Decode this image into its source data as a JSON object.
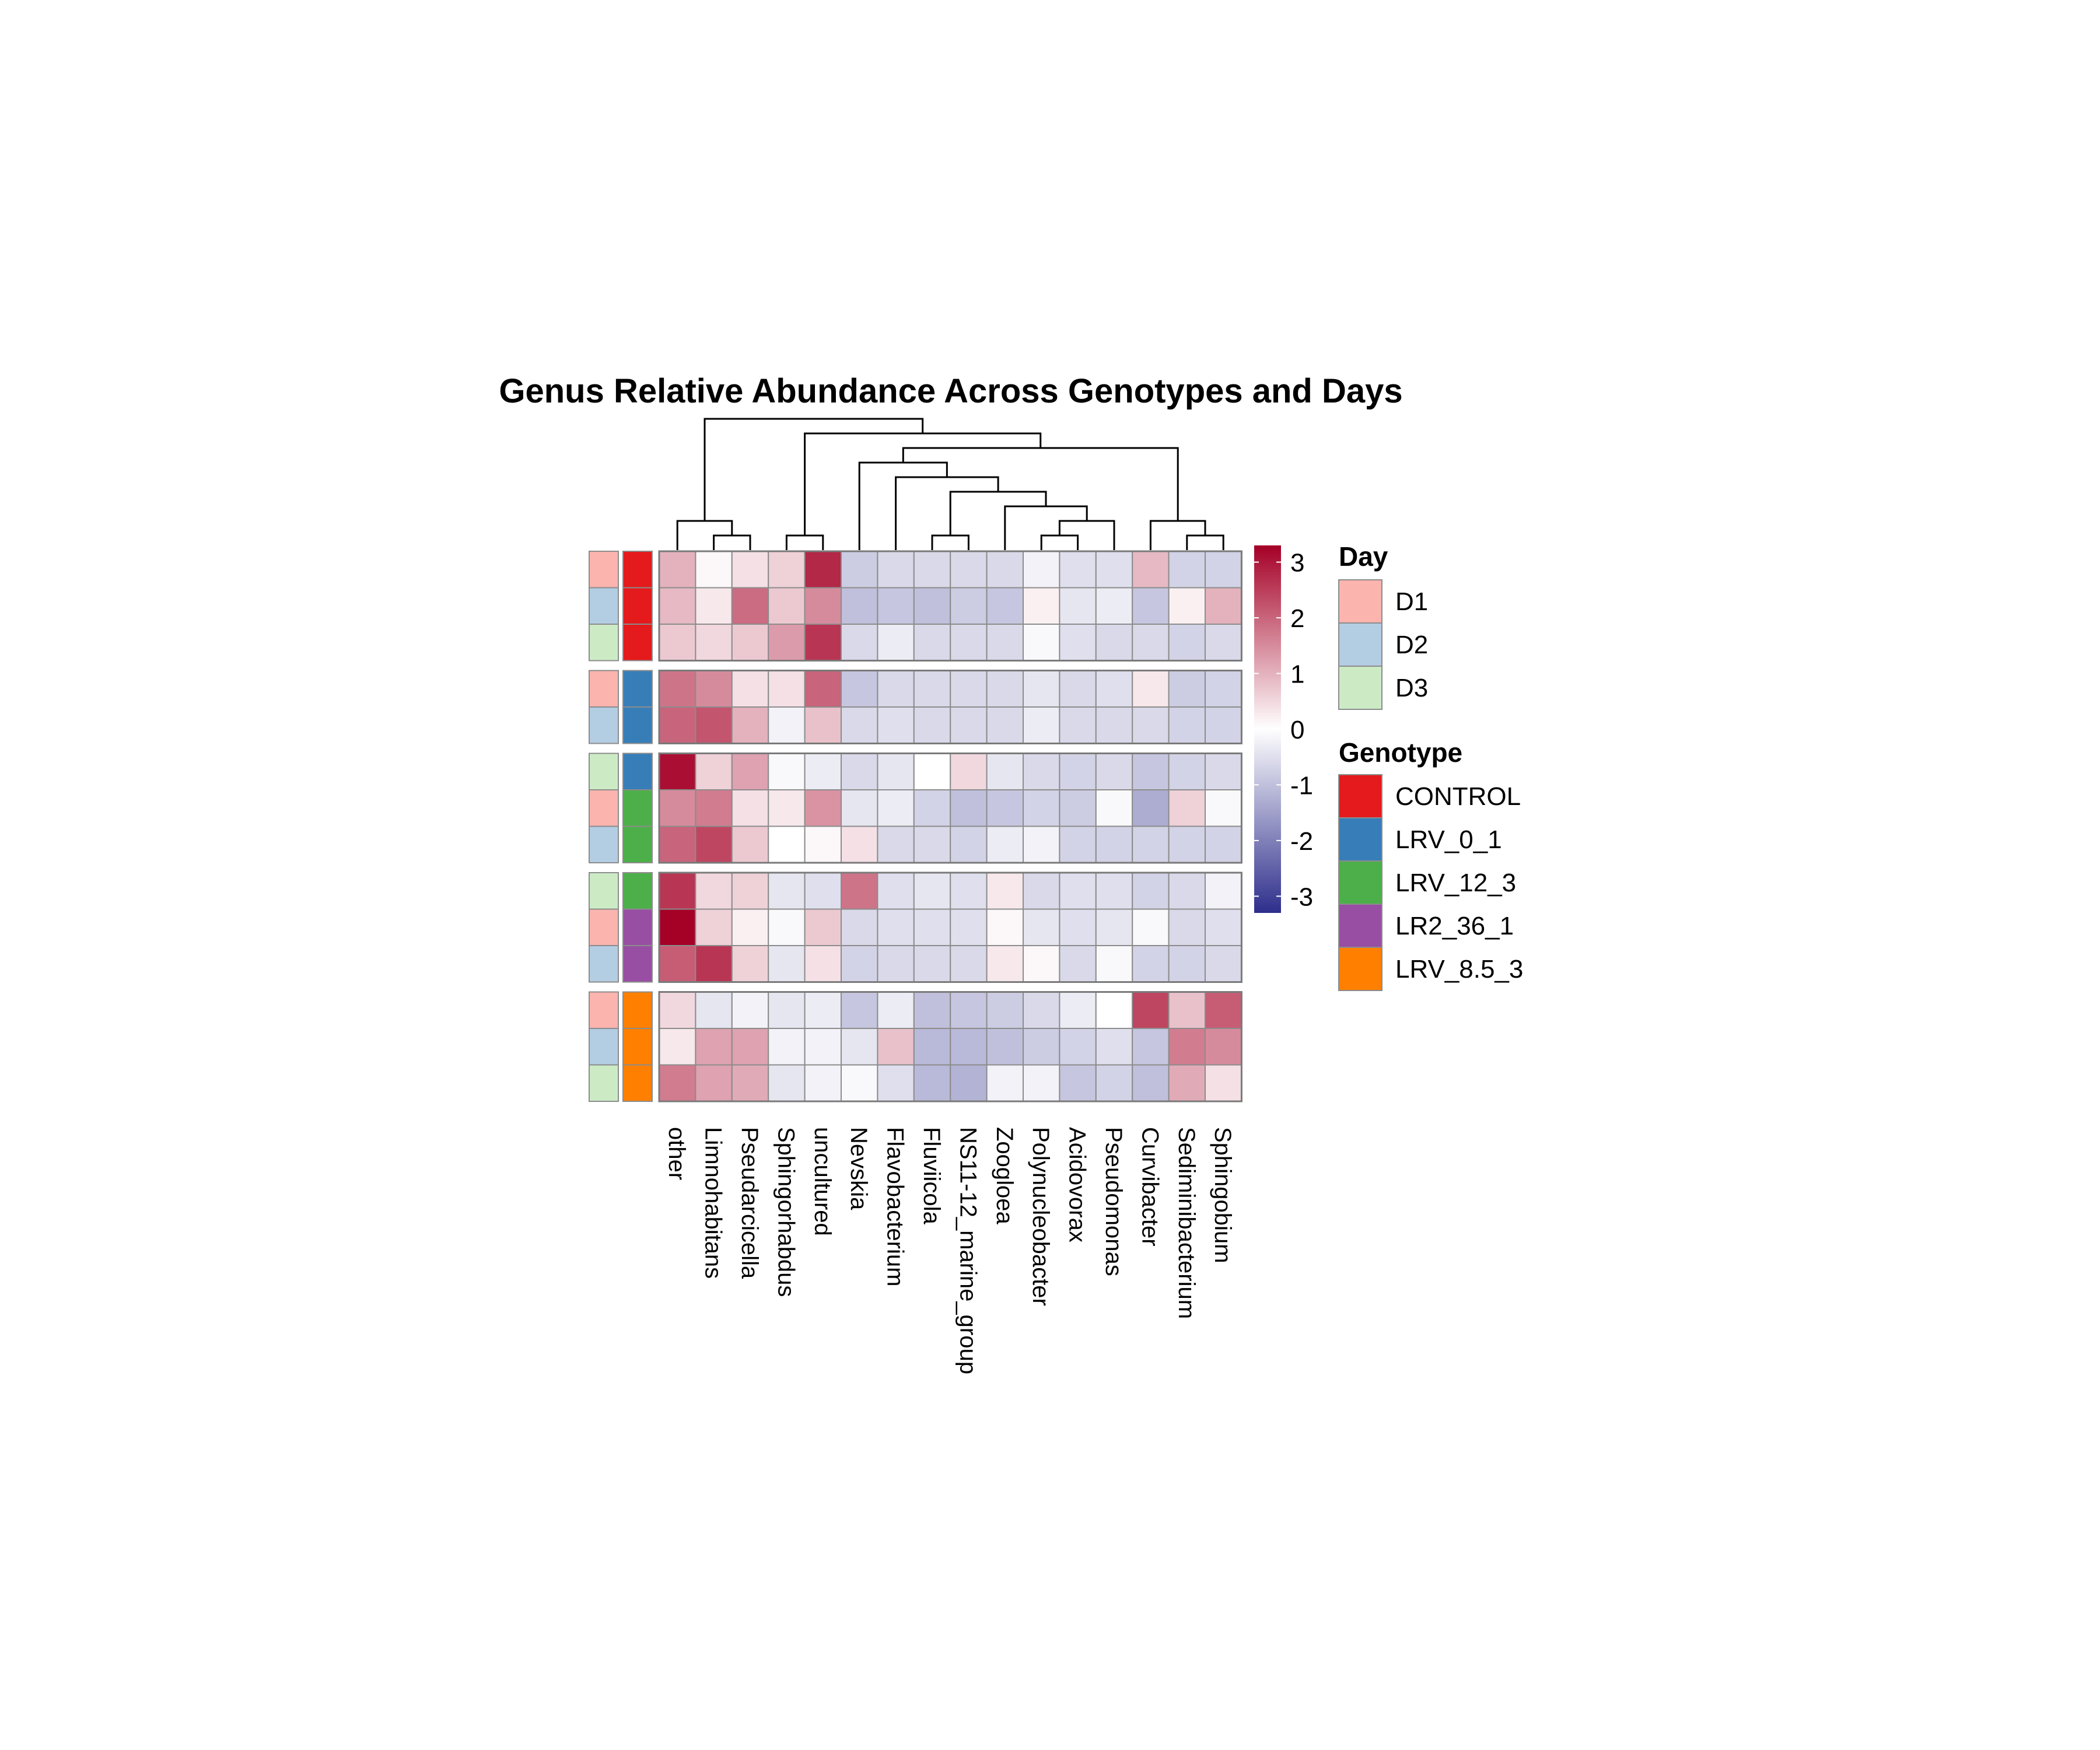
{
  "chart_data": {
    "type": "heatmap",
    "title": "Genus Relative Abundance Across Genotypes and Days",
    "columns": [
      "other",
      "Limnohabitans",
      "Pseudarcicella",
      "Sphingorhabdus",
      "uncultured",
      "Nevskia",
      "Flavobacterium",
      "Fluviicola",
      "NS11-12_marine_group",
      "Zoogloea",
      "Polynucleobacter",
      "Acidovorax",
      "Pseudomonas",
      "Curvibacter",
      "Sediminibacterium",
      "Sphingobium"
    ],
    "row_groups": [
      3,
      2,
      3,
      3,
      3
    ],
    "rows": [
      {
        "day": "D1",
        "genotype": "CONTROL",
        "values": [
          1.0,
          0.1,
          0.4,
          0.6,
          2.8,
          -0.8,
          -0.6,
          -0.6,
          -0.6,
          -0.6,
          -0.2,
          -0.5,
          -0.5,
          0.9,
          -0.7,
          -0.7
        ]
      },
      {
        "day": "D2",
        "genotype": "CONTROL",
        "values": [
          0.9,
          0.3,
          1.9,
          0.7,
          1.5,
          -1.0,
          -0.9,
          -1.0,
          -0.8,
          -0.9,
          0.2,
          -0.4,
          -0.3,
          -0.9,
          0.2,
          1.0
        ]
      },
      {
        "day": "D3",
        "genotype": "CONTROL",
        "values": [
          0.7,
          0.5,
          0.7,
          1.3,
          2.6,
          -0.6,
          -0.3,
          -0.6,
          -0.6,
          -0.6,
          -0.1,
          -0.5,
          -0.6,
          -0.6,
          -0.7,
          -0.6
        ]
      },
      {
        "day": "D1",
        "genotype": "LRV_0_1",
        "values": [
          1.8,
          1.5,
          0.4,
          0.4,
          2.0,
          -0.9,
          -0.6,
          -0.6,
          -0.6,
          -0.6,
          -0.4,
          -0.6,
          -0.5,
          0.3,
          -0.8,
          -0.7
        ]
      },
      {
        "day": "D2",
        "genotype": "LRV_0_1",
        "values": [
          2.0,
          2.2,
          1.0,
          -0.2,
          0.8,
          -0.6,
          -0.5,
          -0.6,
          -0.6,
          -0.6,
          -0.3,
          -0.6,
          -0.6,
          -0.6,
          -0.7,
          -0.7
        ]
      },
      {
        "day": "D3",
        "genotype": "LRV_0_1",
        "values": [
          3.1,
          0.6,
          1.2,
          -0.1,
          -0.3,
          -0.6,
          -0.4,
          0.0,
          0.5,
          -0.4,
          -0.6,
          -0.7,
          -0.6,
          -0.9,
          -0.7,
          -0.6
        ]
      },
      {
        "day": "D1",
        "genotype": "LRV_12_3",
        "values": [
          1.5,
          1.7,
          0.4,
          0.3,
          1.4,
          -0.4,
          -0.3,
          -0.7,
          -1.0,
          -0.9,
          -0.7,
          -0.8,
          -0.1,
          -1.3,
          0.6,
          -0.1
        ]
      },
      {
        "day": "D2",
        "genotype": "LRV_12_3",
        "values": [
          2.0,
          2.4,
          0.7,
          0.0,
          0.1,
          0.4,
          -0.6,
          -0.6,
          -0.7,
          -0.3,
          -0.2,
          -0.7,
          -0.7,
          -0.7,
          -0.7,
          -0.7
        ]
      },
      {
        "day": "D3",
        "genotype": "LRV_12_3",
        "values": [
          2.6,
          0.5,
          0.6,
          -0.4,
          -0.5,
          1.8,
          -0.5,
          -0.4,
          -0.5,
          0.3,
          -0.6,
          -0.5,
          -0.5,
          -0.7,
          -0.6,
          -0.2
        ]
      },
      {
        "day": "D1",
        "genotype": "LR2_36_1",
        "values": [
          3.3,
          0.6,
          0.2,
          -0.1,
          0.7,
          -0.6,
          -0.5,
          -0.5,
          -0.5,
          0.1,
          -0.4,
          -0.5,
          -0.4,
          -0.1,
          -0.6,
          -0.5
        ]
      },
      {
        "day": "D2",
        "genotype": "LR2_36_1",
        "values": [
          2.1,
          2.6,
          0.6,
          -0.4,
          0.4,
          -0.7,
          -0.6,
          -0.6,
          -0.6,
          0.3,
          0.1,
          -0.6,
          -0.1,
          -0.7,
          -0.7,
          -0.6
        ]
      },
      {
        "day": "D1",
        "genotype": "LRV_8.5_3",
        "values": [
          0.5,
          -0.4,
          -0.2,
          -0.4,
          -0.3,
          -0.9,
          -0.3,
          -1.0,
          -0.9,
          -0.8,
          -0.6,
          -0.3,
          0.0,
          2.4,
          0.8,
          2.1
        ]
      },
      {
        "day": "D2",
        "genotype": "LRV_8.5_3",
        "values": [
          0.3,
          1.2,
          1.2,
          -0.2,
          -0.2,
          -0.4,
          0.8,
          -1.1,
          -1.1,
          -1.0,
          -0.8,
          -0.7,
          -0.5,
          -0.9,
          1.7,
          1.5
        ]
      },
      {
        "day": "D3",
        "genotype": "LRV_8.5_3",
        "values": [
          1.7,
          1.2,
          1.1,
          -0.4,
          -0.2,
          -0.1,
          -0.5,
          -1.1,
          -1.2,
          -0.2,
          -0.2,
          -0.9,
          -0.7,
          -1.0,
          1.1,
          0.4
        ]
      }
    ],
    "color_scale": {
      "min": -3.3,
      "max": 3.3,
      "ticks": [
        3,
        2,
        1,
        0,
        -1,
        -2,
        -3
      ],
      "low_color": "#2E2E8C",
      "mid_color": "#FFFFFF",
      "high_color": "#A50026"
    },
    "column_dendrogram": "((other,(Limnohabitans,Pseudarcicella)),((Sphingorhabdus,uncultured),((Curvibacter,(Sediminibacterium,Sphingobium)),(Nevskia,(Flavobacterium,((Fluviicola,NS11-12_marine_group),(Zoogloea,((Polynucleobacter,Acidovorax),Pseudomonas))))))))",
    "legends": {
      "day": {
        "title": "Day",
        "items": [
          {
            "label": "D1",
            "color": "#FBB4AE"
          },
          {
            "label": "D2",
            "color": "#B3CDE3"
          },
          {
            "label": "D3",
            "color": "#CCEBC5"
          }
        ]
      },
      "genotype": {
        "title": "Genotype",
        "items": [
          {
            "label": "CONTROL",
            "color": "#E41A1C"
          },
          {
            "label": "LRV_0_1",
            "color": "#377EB8"
          },
          {
            "label": "LRV_12_3",
            "color": "#4DAF4A"
          },
          {
            "label": "LR2_36_1",
            "color": "#984EA3"
          },
          {
            "label": "LRV_8.5_3",
            "color": "#FF7F00"
          }
        ]
      }
    }
  }
}
